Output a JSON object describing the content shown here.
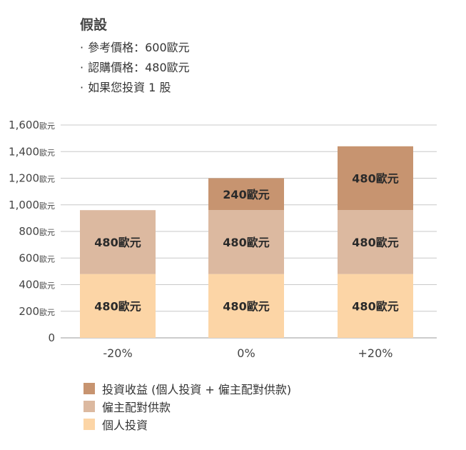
{
  "assumptions": {
    "title": "假設",
    "items": [
      "參考價格：600歐元",
      "認購價格：480歐元",
      "如果您投資 1 股"
    ]
  },
  "chart_data": {
    "type": "bar",
    "stacked": true,
    "categories": [
      "-20%",
      "0%",
      "+20%"
    ],
    "series": [
      {
        "name": "個人投資",
        "values": [
          480,
          480,
          480
        ],
        "labels": [
          "480歐元",
          "480歐元",
          "480歐元"
        ],
        "color": "#fcd5a6"
      },
      {
        "name": "僱主配對供款",
        "values": [
          480,
          480,
          480
        ],
        "labels": [
          "480歐元",
          "480歐元",
          "480歐元"
        ],
        "color": "#dcb9a0"
      },
      {
        "name": "投資收益 (個人投資 + 僱主配對供款)",
        "values": [
          0,
          240,
          480
        ],
        "labels": [
          "",
          "240歐元",
          "480歐元"
        ],
        "color": "#c79470"
      }
    ],
    "ylim": [
      0,
      1600
    ],
    "yticks": [
      {
        "value": 0,
        "num": "0",
        "unit": ""
      },
      {
        "value": 200,
        "num": "200",
        "unit": "歐元"
      },
      {
        "value": 400,
        "num": "400",
        "unit": "歐元"
      },
      {
        "value": 600,
        "num": "600",
        "unit": "歐元"
      },
      {
        "value": 800,
        "num": "800",
        "unit": "歐元"
      },
      {
        "value": 1000,
        "num": "1,000",
        "unit": "歐元"
      },
      {
        "value": 1200,
        "num": "1,200",
        "unit": "歐元"
      },
      {
        "value": 1400,
        "num": "1,400",
        "unit": "歐元"
      },
      {
        "value": 1600,
        "num": "1,600",
        "unit": "歐元"
      }
    ],
    "grid": true,
    "legend_position": "bottom-left"
  },
  "legend": [
    {
      "label": "投資收益 (個人投資 + 僱主配對供款)",
      "color": "#c79470"
    },
    {
      "label": "僱主配對供款",
      "color": "#dcb9a0"
    },
    {
      "label": "個人投資",
      "color": "#fcd5a6"
    }
  ]
}
